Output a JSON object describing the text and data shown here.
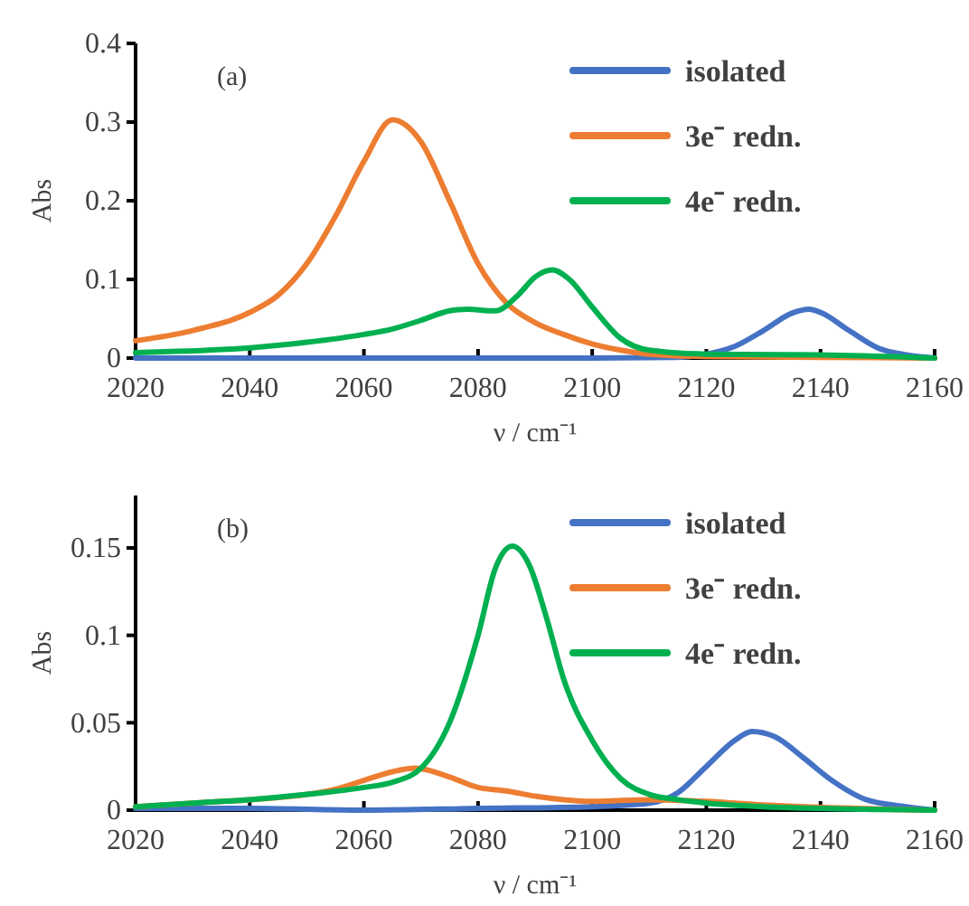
{
  "chart_data": [
    {
      "type": "line",
      "title": "(a)",
      "xlabel": "ν / cm⁻¹",
      "ylabel": "Abs",
      "xlim": [
        2020,
        2160
      ],
      "xticks": [
        2020,
        2040,
        2060,
        2080,
        2100,
        2120,
        2140,
        2160
      ],
      "ylim": [
        0,
        0.4
      ],
      "yticks": [
        0,
        0.1,
        0.2,
        0.3,
        0.4
      ],
      "grid": false,
      "legend": "top right",
      "marker": "none",
      "line_style": "solid",
      "series": [
        {
          "name": "isolated",
          "color": "#4472c4",
          "x": [
            2020,
            2040,
            2060,
            2080,
            2100,
            2115,
            2120,
            2125,
            2130,
            2135,
            2138,
            2140,
            2145,
            2150,
            2155,
            2160
          ],
          "values": [
            0,
            0,
            0,
            0,
            0,
            0.001,
            0.005,
            0.015,
            0.035,
            0.057,
            0.062,
            0.058,
            0.035,
            0.013,
            0.004,
            0
          ]
        },
        {
          "name": "3e⁻ redn.",
          "color": "#ed7d31",
          "x": [
            2020,
            2030,
            2040,
            2045,
            2050,
            2055,
            2060,
            2065,
            2070,
            2075,
            2080,
            2085,
            2090,
            2095,
            2100,
            2105,
            2110,
            2120,
            2140,
            2160
          ],
          "values": [
            0.022,
            0.035,
            0.058,
            0.08,
            0.12,
            0.18,
            0.25,
            0.303,
            0.275,
            0.2,
            0.12,
            0.07,
            0.045,
            0.03,
            0.018,
            0.01,
            0.005,
            0.002,
            0.001,
            0
          ]
        },
        {
          "name": "4e⁻ redn.",
          "color": "#00b050",
          "x": [
            2020,
            2040,
            2050,
            2060,
            2065,
            2070,
            2075,
            2078,
            2083,
            2087,
            2090,
            2093,
            2096,
            2100,
            2105,
            2110,
            2120,
            2140,
            2160
          ],
          "values": [
            0.007,
            0.013,
            0.02,
            0.03,
            0.037,
            0.048,
            0.06,
            0.062,
            0.06,
            0.08,
            0.103,
            0.112,
            0.1,
            0.065,
            0.025,
            0.01,
            0.005,
            0.004,
            0
          ]
        }
      ]
    },
    {
      "type": "line",
      "title": "(b)",
      "xlabel": "ν / cm⁻¹",
      "ylabel": "Abs",
      "xlim": [
        2020,
        2160
      ],
      "xticks": [
        2020,
        2040,
        2060,
        2080,
        2100,
        2120,
        2140,
        2160
      ],
      "ylim": [
        0,
        0.18
      ],
      "yticks": [
        0,
        0.05,
        0.1,
        0.15
      ],
      "grid": false,
      "legend": "top right",
      "marker": "none",
      "line_style": "solid",
      "series": [
        {
          "name": "isolated",
          "color": "#4472c4",
          "x": [
            2020,
            2040,
            2060,
            2080,
            2100,
            2110,
            2115,
            2120,
            2125,
            2128,
            2132,
            2137,
            2142,
            2148,
            2155,
            2160
          ],
          "values": [
            0.001,
            0.001,
            0,
            0.001,
            0.002,
            0.004,
            0.01,
            0.025,
            0.04,
            0.045,
            0.042,
            0.03,
            0.017,
            0.006,
            0.002,
            0
          ]
        },
        {
          "name": "3e⁻ redn.",
          "color": "#ed7d31",
          "x": [
            2020,
            2030,
            2040,
            2050,
            2055,
            2060,
            2065,
            2069,
            2075,
            2080,
            2085,
            2090,
            2095,
            2100,
            2110,
            2120,
            2130,
            2160
          ],
          "values": [
            0.002,
            0.004,
            0.006,
            0.009,
            0.012,
            0.017,
            0.022,
            0.024,
            0.019,
            0.013,
            0.011,
            0.008,
            0.006,
            0.005,
            0.006,
            0.005,
            0.003,
            0
          ]
        },
        {
          "name": "4e⁻ redn.",
          "color": "#00b050",
          "x": [
            2020,
            2030,
            2040,
            2050,
            2060,
            2065,
            2070,
            2075,
            2080,
            2083,
            2086,
            2089,
            2092,
            2095,
            2100,
            2105,
            2110,
            2115,
            2120,
            2130,
            2140,
            2160
          ],
          "values": [
            0.002,
            0.004,
            0.006,
            0.009,
            0.013,
            0.016,
            0.024,
            0.05,
            0.1,
            0.138,
            0.151,
            0.14,
            0.11,
            0.075,
            0.04,
            0.018,
            0.009,
            0.006,
            0.004,
            0.002,
            0.001,
            0
          ]
        }
      ]
    }
  ]
}
